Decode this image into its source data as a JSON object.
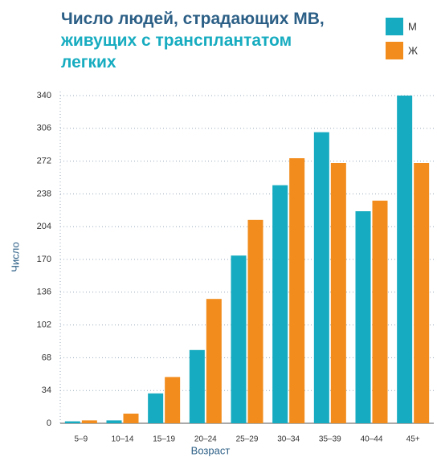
{
  "chart_data": {
    "type": "bar",
    "title_part1": "Число людей, страдающих МВ,",
    "title_part2": "живущих с трансплантатом легких",
    "xlabel": "Возраст",
    "ylabel": "Число",
    "categories": [
      "5–9",
      "10–14",
      "15–19",
      "20–24",
      "25–29",
      "30–34",
      "35–39",
      "40–44",
      "45+"
    ],
    "series": [
      {
        "name": "М",
        "color": "#16abc0",
        "values": [
          2,
          3,
          31,
          76,
          174,
          247,
          302,
          220,
          340
        ]
      },
      {
        "name": "Ж",
        "color": "#f28c1c",
        "values": [
          3,
          10,
          48,
          129,
          211,
          275,
          270,
          231,
          270
        ]
      }
    ],
    "ylim": [
      0,
      340
    ],
    "yticks": [
      0,
      34,
      68,
      102,
      136,
      170,
      204,
      238,
      272,
      306,
      340
    ],
    "grid": true,
    "legend": "top-right"
  }
}
